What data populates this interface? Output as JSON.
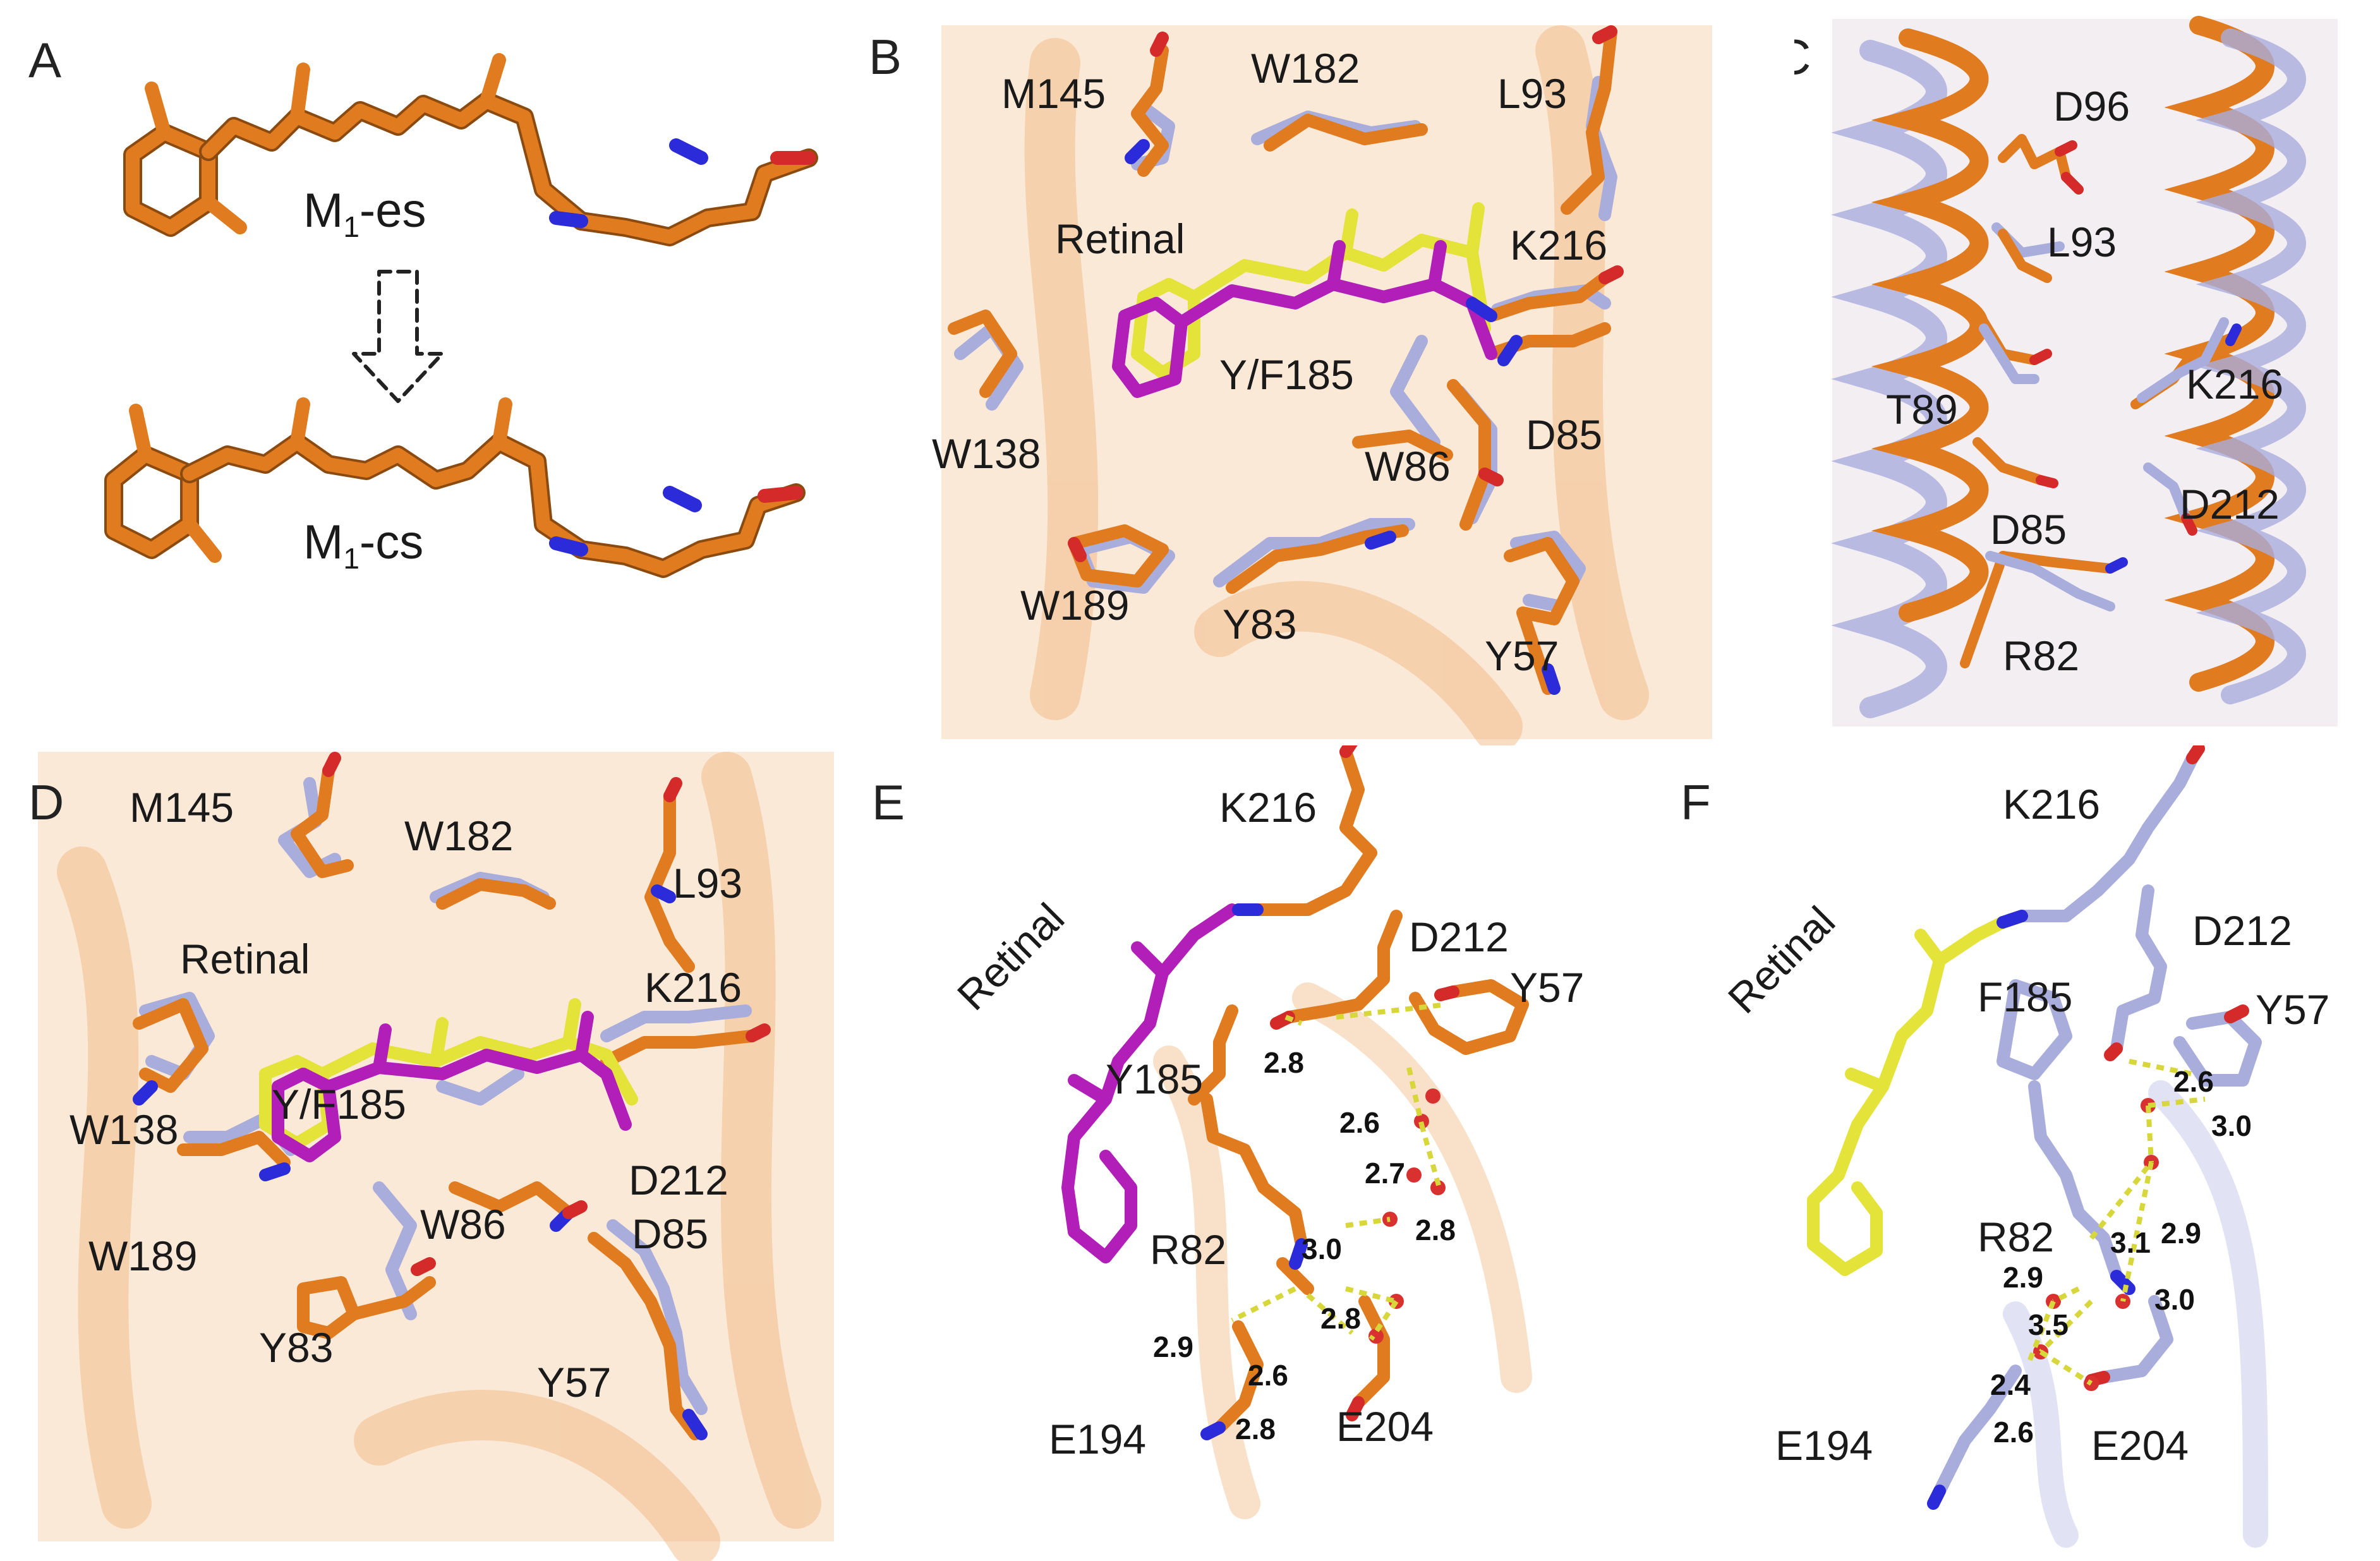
{
  "panel_labels": [
    "A",
    "B",
    "C",
    "D",
    "E",
    "F"
  ],
  "panel_a": {
    "state_top": "M",
    "state_top_sub": "1",
    "state_top_suffix": "-es",
    "state_bottom": "M",
    "state_bottom_sub": "1",
    "state_bottom_suffix": "-cs"
  },
  "panel_b": {
    "labels": [
      "M145",
      "W182",
      "L93",
      "Retinal",
      "K216",
      "Y/F185",
      "W138",
      "W86",
      "D85",
      "W189",
      "Y83",
      "Y57"
    ]
  },
  "panel_c": {
    "labels": [
      "D96",
      "L93",
      "T89",
      "K216",
      "D85",
      "D212",
      "R82"
    ]
  },
  "panel_d": {
    "labels": [
      "M145",
      "W182",
      "L93",
      "Retinal",
      "K216",
      "W138",
      "Y/F185",
      "D212",
      "W189",
      "W86",
      "D85",
      "Y83",
      "Y57"
    ]
  },
  "panel_e": {
    "labels": [
      "K216",
      "D212",
      "Retinal",
      "Y57",
      "Y185",
      "R82",
      "E194",
      "E204"
    ],
    "distances": [
      "2.8",
      "2.6",
      "2.7",
      "3.0",
      "2.8",
      "2.8",
      "2.9",
      "2.6",
      "2.8"
    ]
  },
  "panel_f": {
    "labels": [
      "K216",
      "D212",
      "Retinal",
      "F185",
      "Y57",
      "R82",
      "E194",
      "E204"
    ],
    "distances": [
      "2.6",
      "3.0",
      "3.1",
      "2.9",
      "2.9",
      "3.5",
      "3.0",
      "2.4",
      "2.6"
    ]
  },
  "colors": {
    "orange_structure": "#e07b1f",
    "lavender_structure": "#a9addc",
    "retinal_magenta": "#b21fb8",
    "retinal_yellow": "#e3e33a",
    "nitrogen_blue": "#2b2bd9",
    "oxygen_red": "#d42a2a",
    "water_red": "#d93030",
    "hbond_yellow": "#d7d63a"
  }
}
